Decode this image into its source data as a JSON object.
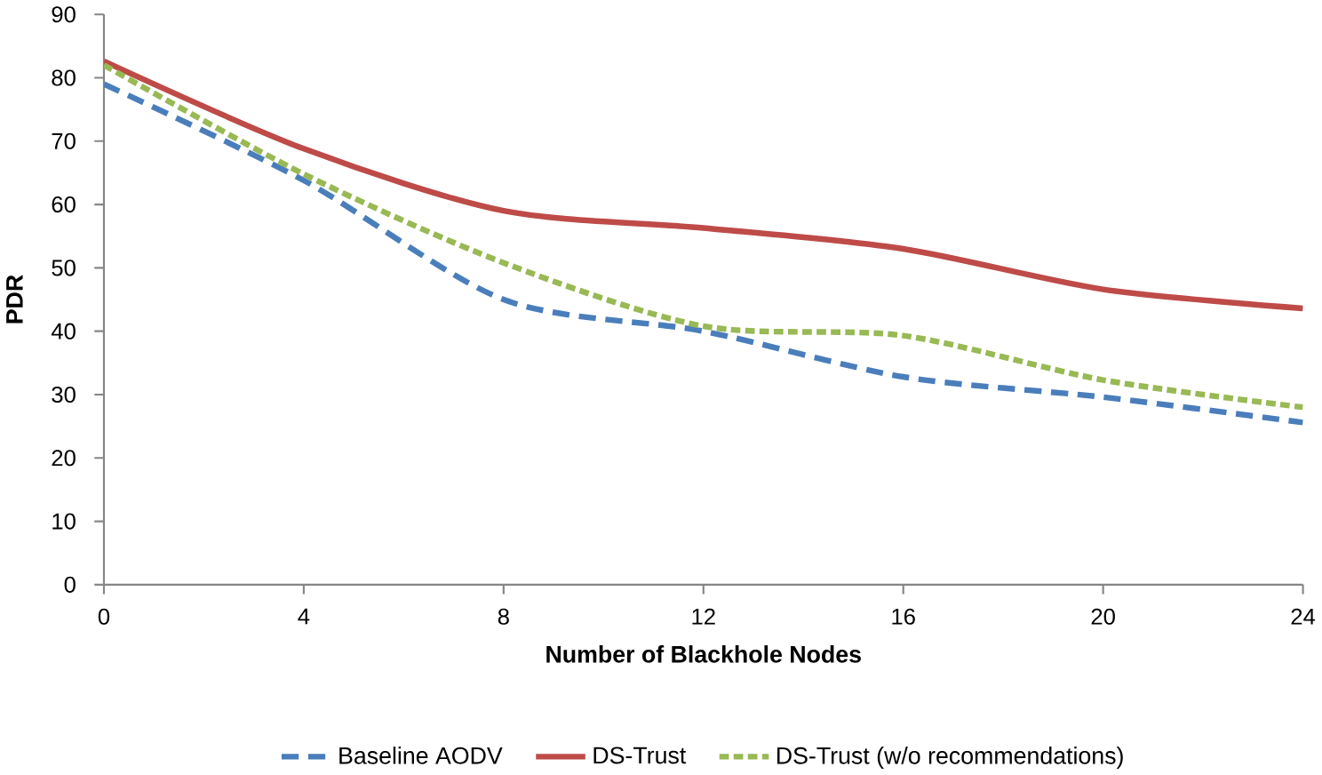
{
  "chart_data": {
    "type": "line",
    "xlabel": "Number of Blackhole Nodes",
    "ylabel": "PDR",
    "x": [
      0,
      4,
      8,
      12,
      16,
      20,
      24
    ],
    "xlim": [
      0,
      24
    ],
    "xticks": [
      0,
      4,
      8,
      12,
      16,
      20,
      24
    ],
    "ylim": [
      0,
      90
    ],
    "yticks": [
      0,
      10,
      20,
      30,
      40,
      50,
      60,
      70,
      80,
      90
    ],
    "grid": false,
    "legend": "bottom",
    "series": [
      {
        "name": "Baseline AODV",
        "color": "#4a7ebb",
        "line_style": "dashed",
        "values": [
          79,
          63.8,
          45,
          40,
          32.8,
          29.6,
          25.6
        ]
      },
      {
        "name": "DS-Trust",
        "color": "#be4b48",
        "line_style": "solid",
        "values": [
          82.6,
          68.8,
          59,
          56.3,
          53,
          46.6,
          43.6
        ]
      },
      {
        "name": "DS-Trust (w/o recommendations)",
        "color": "#98b954",
        "line_style": "dotted",
        "values": [
          82,
          64.8,
          50.8,
          40.8,
          39.3,
          32.3,
          28
        ]
      }
    ]
  }
}
